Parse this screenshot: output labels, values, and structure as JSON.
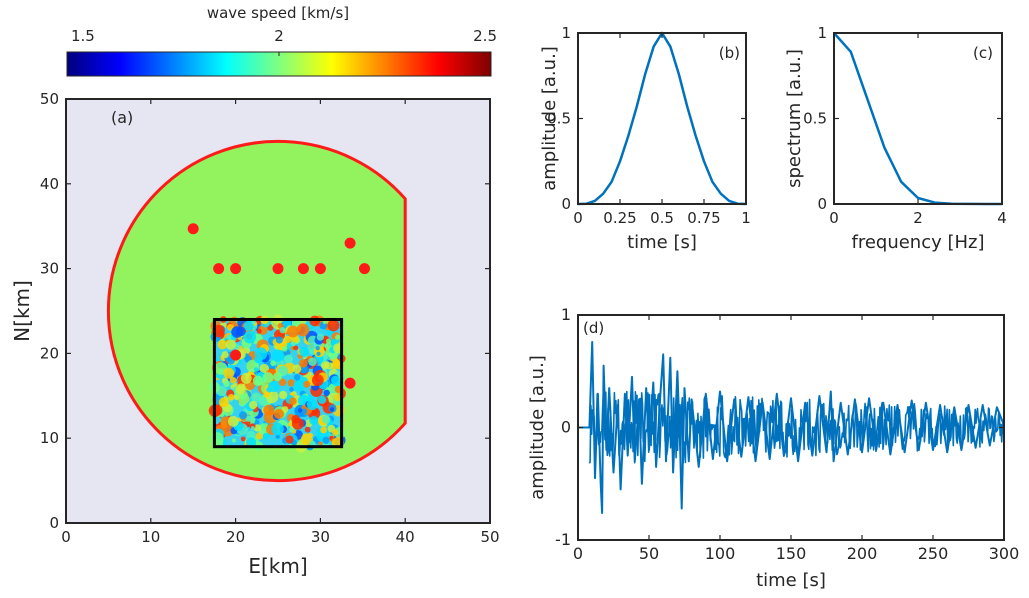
{
  "colorbar": {
    "label": "wave speed [km/s]",
    "ticks": [
      1.5,
      2,
      2.5
    ],
    "tick_labels": [
      "1.5",
      "2",
      "2.5"
    ],
    "range": [
      1.5,
      2.5
    ],
    "colormap": "jet"
  },
  "chart_data": [
    {
      "panel": "(a)",
      "type": "map",
      "xlabel": "E[km]",
      "ylabel": "N[km]",
      "xlim": [
        0,
        50
      ],
      "ylim": [
        0,
        50
      ],
      "xticks": [
        0,
        10,
        20,
        30,
        40,
        50
      ],
      "yticks": [
        0,
        10,
        20,
        30,
        40,
        50
      ],
      "background_color": "#e6e6f2",
      "domain_color": "#93f35f",
      "boundary_color": "#ff1a1a",
      "domain_circle": {
        "center": [
          25,
          25
        ],
        "radius": 20,
        "cut_at_x": 40
      },
      "random_medium_box": {
        "x": [
          17.5,
          32.5
        ],
        "y": [
          9,
          24
        ]
      },
      "stations": [
        {
          "x": 15,
          "y": 34.7
        },
        {
          "x": 18,
          "y": 30
        },
        {
          "x": 20,
          "y": 30
        },
        {
          "x": 25,
          "y": 30
        },
        {
          "x": 28,
          "y": 30
        },
        {
          "x": 30,
          "y": 30
        },
        {
          "x": 33.5,
          "y": 33
        },
        {
          "x": 35.2,
          "y": 30
        },
        {
          "x": 20,
          "y": 19.8
        },
        {
          "x": 33.5,
          "y": 16.5
        }
      ]
    },
    {
      "panel": "(b)",
      "type": "line",
      "xlabel": "time [s]",
      "ylabel": "amplitude [a.u.]",
      "xlim": [
        0,
        1
      ],
      "ylim": [
        0,
        1
      ],
      "xticks": [
        0,
        0.25,
        0.5,
        0.75,
        1
      ],
      "xtick_labels": [
        "0",
        "0.25",
        "0.5",
        "0.75",
        "1"
      ],
      "yticks": [
        0,
        0.5,
        1
      ],
      "ytick_labels": [
        "0",
        "0.5",
        "1"
      ],
      "x": [
        0,
        0.05,
        0.1,
        0.15,
        0.2,
        0.25,
        0.3,
        0.35,
        0.4,
        0.45,
        0.5,
        0.55,
        0.6,
        0.65,
        0.7,
        0.75,
        0.8,
        0.85,
        0.9,
        0.95,
        1
      ],
      "y": [
        0,
        0.002,
        0.018,
        0.06,
        0.13,
        0.25,
        0.4,
        0.57,
        0.76,
        0.92,
        1,
        0.92,
        0.76,
        0.57,
        0.4,
        0.25,
        0.13,
        0.06,
        0.018,
        0.002,
        0
      ],
      "color": "#0072bd"
    },
    {
      "panel": "(c)",
      "type": "line",
      "xlabel": "frequency [Hz]",
      "ylabel": "spectrum [a.u.]",
      "xlim": [
        0,
        4
      ],
      "ylim": [
        0,
        1
      ],
      "xticks": [
        0,
        2,
        4
      ],
      "xtick_labels": [
        "0",
        "2",
        "4"
      ],
      "yticks": [
        0,
        0.5,
        1
      ],
      "ytick_labels": [
        "0",
        "0.5",
        "1"
      ],
      "x": [
        0,
        0.4,
        0.8,
        1.2,
        1.6,
        2.0,
        2.4,
        2.8,
        3.2,
        3.6,
        4.0
      ],
      "y": [
        1,
        0.89,
        0.61,
        0.33,
        0.13,
        0.035,
        0.008,
        0.002,
        0.0005,
        0.0001,
        0
      ],
      "color": "#0072bd"
    },
    {
      "panel": "(d)",
      "type": "line",
      "xlabel": "time [s]",
      "ylabel": "amplitude [a.u.]",
      "xlim": [
        0,
        300
      ],
      "ylim": [
        -1,
        1
      ],
      "xticks": [
        0,
        50,
        100,
        150,
        200,
        250,
        300
      ],
      "xtick_labels": [
        "0",
        "50",
        "100",
        "150",
        "200",
        "250",
        "300"
      ],
      "yticks": [
        -1,
        0,
        1
      ],
      "ytick_labels": [
        "-1",
        "0",
        "1"
      ],
      "description_peaks": [
        [
          10,
          0.76
        ],
        [
          17,
          -0.76
        ],
        [
          60,
          0.65
        ],
        [
          65,
          0.62
        ],
        [
          73,
          -0.72
        ]
      ],
      "x": [
        0,
        8,
        10,
        12,
        14,
        16,
        17,
        18,
        20,
        22,
        25,
        28,
        30,
        33,
        35,
        38,
        40,
        43,
        45,
        48,
        50,
        53,
        55,
        58,
        60,
        62,
        65,
        67,
        70,
        72,
        73,
        75,
        78,
        80,
        85,
        90,
        95,
        100,
        105,
        110,
        115,
        120,
        125,
        130,
        135,
        140,
        145,
        150,
        155,
        160,
        165,
        170,
        175,
        178,
        180,
        185,
        190,
        195,
        200,
        205,
        210,
        215,
        220,
        225,
        230,
        235,
        240,
        245,
        250,
        255,
        260,
        265,
        270,
        275,
        280,
        285,
        290,
        295,
        300
      ],
      "y": [
        0,
        0,
        0.76,
        -0.45,
        0.3,
        -0.5,
        -0.76,
        0.55,
        -0.2,
        0.35,
        -0.4,
        0.2,
        -0.55,
        0.3,
        -0.25,
        0.45,
        -0.3,
        0.25,
        -0.5,
        0.35,
        -0.2,
        0.4,
        -0.35,
        0.3,
        0.65,
        -0.3,
        0.62,
        -0.4,
        0.5,
        -0.2,
        -0.72,
        0.35,
        -0.3,
        0.25,
        -0.35,
        0.3,
        -0.28,
        0.32,
        -0.3,
        0.25,
        -0.26,
        0.27,
        -0.3,
        0.22,
        -0.28,
        0.3,
        -0.25,
        0.26,
        -0.3,
        0.22,
        -0.25,
        0.28,
        -0.22,
        0.32,
        -0.3,
        0.22,
        -0.24,
        0.25,
        -0.22,
        0.26,
        -0.2,
        0.22,
        -0.24,
        0.2,
        -0.22,
        0.24,
        -0.2,
        0.22,
        -0.2,
        0.2,
        -0.22,
        0.18,
        -0.2,
        0.2,
        -0.18,
        0.2,
        -0.16,
        0.18,
        0.02
      ],
      "color": "#0072bd"
    }
  ]
}
